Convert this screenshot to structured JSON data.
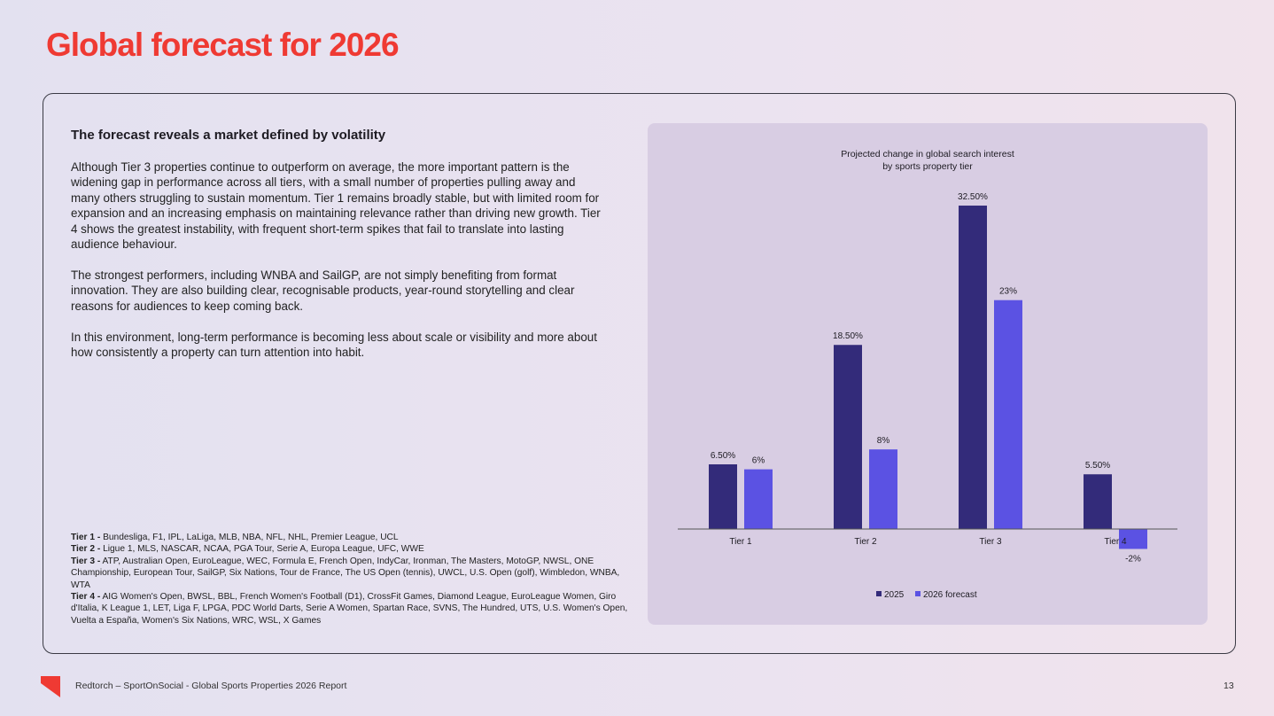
{
  "page": {
    "title": "Global forecast for 2026",
    "footer": "Redtorch – SportOnSocial - Global Sports Properties 2026 Report",
    "page_number": "13"
  },
  "text": {
    "heading": "The forecast reveals a market defined by volatility",
    "paragraphs": [
      "Although Tier 3 properties continue to outperform on average, the more important pattern is the widening gap in performance across all tiers, with a small number of properties pulling away and many others struggling to sustain momentum. Tier 1 remains broadly stable, but with limited room for expansion and an increasing emphasis on maintaining relevance rather than driving new growth. Tier 4 shows the greatest instability, with frequent short-term spikes that fail to translate into lasting audience behaviour.",
      "The strongest performers, including WNBA and SailGP, are not simply benefiting from format innovation. They are also building clear, recognisable products, year-round storytelling and clear reasons for audiences to keep coming back.",
      "In this environment, long-term performance is becoming less about scale or visibility and more about how consistently a property can turn attention into habit."
    ],
    "tiers": [
      {
        "label": "Tier 1 -",
        "list": "Bundesliga, F1, IPL, LaLiga, MLB, NBA, NFL, NHL, Premier League, UCL"
      },
      {
        "label": "Tier 2 -",
        "list": "Ligue 1, MLS, NASCAR, NCAA, PGA Tour, Serie A, Europa League, UFC, WWE"
      },
      {
        "label": "Tier 3 -",
        "list": "ATP, Australian Open, EuroLeague, WEC, Formula E, French Open, IndyCar, Ironman, The Masters, MotoGP, NWSL, ONE Championship, European Tour, SailGP, Six Nations, Tour de France, The US Open (tennis), UWCL, U.S. Open (golf), Wimbledon, WNBA, WTA"
      },
      {
        "label": "Tier 4 -",
        "list": "AIG Women's Open, BWSL, BBL, French Women's Football (D1), CrossFit Games, Diamond League, EuroLeague Women, Giro d'Italia, K League 1, LET, Liga F, LPGA, PDC World Darts, Serie A Women, Spartan Race, SVNS, The Hundred, UTS, U.S. Women's Open, Vuelta a España, Women's Six Nations, WRC, WSL, X Games"
      }
    ]
  },
  "chart_data": {
    "type": "bar",
    "title": "Projected change in global search interest",
    "subtitle": "by sports property tier",
    "categories": [
      "Tier 1",
      "Tier 2",
      "Tier 3",
      "Tier 4"
    ],
    "series": [
      {
        "name": "2025",
        "color": "#332b7a",
        "values": [
          6.5,
          18.5,
          32.5,
          5.5
        ],
        "labels": [
          "6.50%",
          "18.50%",
          "32.50%",
          "5.50%"
        ]
      },
      {
        "name": "2026 forecast",
        "color": "#5b52e3",
        "values": [
          6,
          8,
          23,
          -2
        ],
        "labels": [
          "6%",
          "8%",
          "23%",
          "-2%"
        ]
      }
    ],
    "ylim": [
      -2,
      32.5
    ],
    "grid": false,
    "legend": "bottom"
  },
  "colors": {
    "accent": "#ef3a33"
  }
}
